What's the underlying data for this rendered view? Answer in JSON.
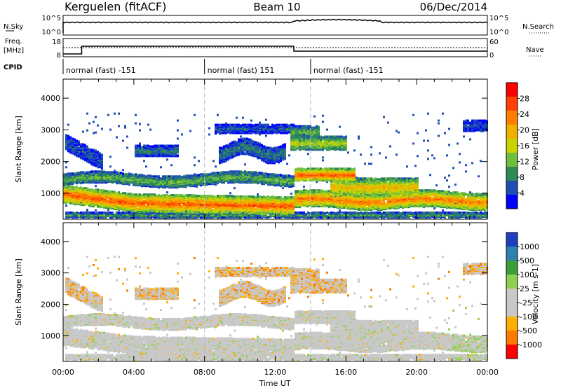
{
  "header": {
    "station": "Kerguelen (fitACF)",
    "beam": "Beam 10",
    "date": "06/Dec/2014"
  },
  "top_panel": {
    "left_label": "N.Sky",
    "left_ticks": [
      "10^5",
      "10^0"
    ],
    "right_label": "N.Search",
    "right_ticks": [
      "10^5",
      "10^0"
    ]
  },
  "freq_panel": {
    "left_label_1": "Freq.",
    "left_label_2": "[MHz]",
    "left_ticks": [
      "18",
      "8"
    ],
    "right_label": "Nave",
    "right_ticks": [
      "60",
      "0"
    ],
    "cpid_label": "CPID"
  },
  "cpid_segments": [
    {
      "label": "normal (fast) -151",
      "start_hour": 0,
      "end_hour": 8
    },
    {
      "label": "normal (fast) 151",
      "start_hour": 8,
      "end_hour": 14
    },
    {
      "label": "normal (fast) -151",
      "start_hour": 14,
      "end_hour": 24
    }
  ],
  "x_axis": {
    "label": "Time UT",
    "ticks": [
      "00:00",
      "04:00",
      "08:00",
      "12:00",
      "16:00",
      "20:00",
      "00:00"
    ],
    "range_hours": [
      0,
      24
    ]
  },
  "y_axis": {
    "label": "Slant Range [km]",
    "ticks": [
      "1000",
      "2000",
      "3000",
      "4000"
    ],
    "range_km": [
      180,
      4600
    ]
  },
  "colors": {
    "power_scale": [
      "#0000ff",
      "#1f4fb4",
      "#2e8b57",
      "#6fbf3f",
      "#c8d400",
      "#f0b000",
      "#ff7f00",
      "#ff4000",
      "#ff0000"
    ],
    "velocity_scale": [
      "#1f3fbf",
      "#2f7fb0",
      "#3a9f3a",
      "#8fd14f",
      "#c8c8c8",
      "#c8c8c8",
      "#ffb000",
      "#ff7a00",
      "#ff0000"
    ]
  },
  "chart_data": [
    {
      "type": "heatmap",
      "panel": "power",
      "x_range": [
        0,
        24
      ],
      "y_range": [
        180,
        4600
      ],
      "colorbar": {
        "label": "Power [dB]",
        "ticks": [
          "4",
          "8",
          "12",
          "16",
          "20",
          "24",
          "28"
        ],
        "range": [
          0,
          32
        ]
      }
    },
    {
      "type": "heatmap",
      "panel": "velocity",
      "x_range": [
        0,
        24
      ],
      "y_range": [
        180,
        4600
      ],
      "colorbar": {
        "label": "Velocity [m s-1]",
        "ticks": [
          "1000",
          "500",
          "100",
          "25",
          "-25",
          "-100",
          "-500",
          "-1000"
        ]
      }
    }
  ]
}
